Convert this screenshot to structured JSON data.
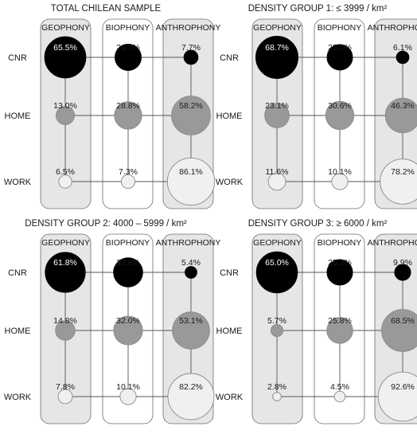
{
  "chart_data": [
    {
      "type": "bubble-matrix",
      "title": "TOTAL CHILEAN SAMPLE",
      "columns": [
        "GEOPHONY",
        "BIOPHONY",
        "ANTHROPHONY"
      ],
      "rows": [
        "CNR",
        "HOME",
        "WORK"
      ],
      "values": [
        [
          65.5,
          26.7,
          7.7
        ],
        [
          13.0,
          28.8,
          58.2
        ],
        [
          6.5,
          7.3,
          86.1
        ]
      ],
      "labels": [
        [
          "65.5%",
          "26.7%",
          "7.7%"
        ],
        [
          "13.0%",
          "28.8%",
          "58.2%"
        ],
        [
          "6.5%",
          "7.3%",
          "86.1%"
        ]
      ]
    },
    {
      "type": "bubble-matrix",
      "title": "DENSITY GROUP 1: ≤ 3999 / km²",
      "columns": [
        "GEOPHONY",
        "BIOPHONY",
        "ANTHROPHONY"
      ],
      "rows": [
        "CNR",
        "HOME",
        "WORK"
      ],
      "values": [
        [
          68.7,
          25.1,
          6.1
        ],
        [
          23.1,
          30.6,
          46.3
        ],
        [
          11.6,
          10.1,
          78.2
        ]
      ],
      "labels": [
        [
          "68.7%",
          "25.1%",
          "6.1%"
        ],
        [
          "23.1%",
          "30.6%",
          "46.3%"
        ],
        [
          "11.6%",
          "10.1%",
          "78.2%"
        ]
      ]
    },
    {
      "type": "bubble-matrix",
      "title": "DENSITY GROUP 2: 4000 – 5999 / km²",
      "columns": [
        "GEOPHONY",
        "BIOPHONY",
        "ANTHROPHONY"
      ],
      "rows": [
        "CNR",
        "HOME",
        "WORK"
      ],
      "values": [
        [
          61.8,
          32.8,
          5.4
        ],
        [
          14.8,
          32.0,
          53.1
        ],
        [
          7.8,
          10.1,
          82.2
        ]
      ],
      "labels": [
        [
          "61.8%",
          "32.8%",
          "5.4%"
        ],
        [
          "14.8%",
          "32.0%",
          "53.1%"
        ],
        [
          "7.8%",
          "10.1%",
          "82.2%"
        ]
      ]
    },
    {
      "type": "bubble-matrix",
      "title": "DENSITY GROUP 3: ≥ 6000 / km²",
      "columns": [
        "GEOPHONY",
        "BIOPHONY",
        "ANTHROPHONY"
      ],
      "rows": [
        "CNR",
        "HOME",
        "WORK"
      ],
      "values": [
        [
          65.0,
          25.2,
          9.9
        ],
        [
          5.7,
          25.8,
          68.5
        ],
        [
          2.8,
          4.5,
          92.6
        ]
      ],
      "labels": [
        [
          "65.0%",
          "25.2%",
          "9.9%"
        ],
        [
          "5.7%",
          "25.8%",
          "68.5%"
        ],
        [
          "2.8%",
          "4.5%",
          "92.6%"
        ]
      ]
    }
  ],
  "colors": {
    "cnr": "#000000",
    "home": "#999999",
    "work": "#f0f0f0",
    "column_shaded": "#e6e6e6",
    "column_plain": "#ffffff",
    "outline": "#6e6e6e"
  }
}
